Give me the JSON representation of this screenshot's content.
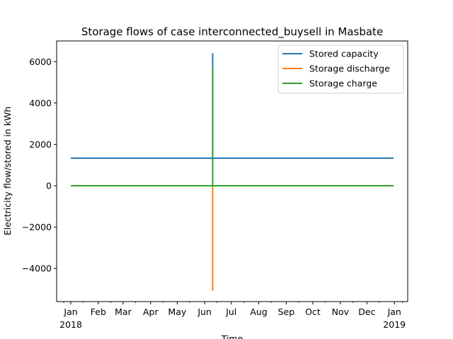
{
  "chart_data": {
    "type": "line",
    "title": "Storage flows of case interconnected_buysell in Masbate",
    "xlabel": "Time",
    "ylabel": "Electricity flow/stored in kWh",
    "xlim": [
      "2017-12-16",
      "2019-01-16"
    ],
    "ylim": [
      -5600,
      7000
    ],
    "yticks": [
      -4000,
      -2000,
      0,
      2000,
      4000,
      6000
    ],
    "xticks": [
      {
        "date": "2018-01-01",
        "label": "Jan",
        "year": "2018"
      },
      {
        "date": "2018-02-01",
        "label": "Feb",
        "year": ""
      },
      {
        "date": "2018-03-01",
        "label": "Mar",
        "year": ""
      },
      {
        "date": "2018-04-01",
        "label": "Apr",
        "year": ""
      },
      {
        "date": "2018-05-01",
        "label": "May",
        "year": ""
      },
      {
        "date": "2018-06-01",
        "label": "Jun",
        "year": ""
      },
      {
        "date": "2018-07-01",
        "label": "Jul",
        "year": ""
      },
      {
        "date": "2018-08-01",
        "label": "Aug",
        "year": ""
      },
      {
        "date": "2018-09-01",
        "label": "Sep",
        "year": ""
      },
      {
        "date": "2018-10-01",
        "label": "Oct",
        "year": ""
      },
      {
        "date": "2018-11-01",
        "label": "Nov",
        "year": ""
      },
      {
        "date": "2018-12-01",
        "label": "Dec",
        "year": ""
      },
      {
        "date": "2019-01-01",
        "label": "Jan",
        "year": "2019"
      }
    ],
    "minor_tick_dates": [
      "2017-12-24",
      "2018-01-15",
      "2018-02-15",
      "2018-03-15",
      "2018-04-15",
      "2018-05-15",
      "2018-06-15",
      "2018-07-15",
      "2018-08-15",
      "2018-09-15",
      "2018-10-15",
      "2018-11-15",
      "2018-12-15",
      "2019-01-10"
    ],
    "legend_position": "top-right",
    "grid": false,
    "series": [
      {
        "name": "Stored capacity",
        "color": "#1f77b4",
        "points": [
          [
            "2018-01-01",
            1330
          ],
          [
            "2018-06-10",
            1330
          ],
          [
            "2018-06-10",
            6380
          ],
          [
            "2018-06-10",
            1330
          ],
          [
            "2018-12-31",
            1330
          ]
        ]
      },
      {
        "name": "Storage discharge",
        "color": "#ff7f0e",
        "points": [
          [
            "2018-01-01",
            0
          ],
          [
            "2018-06-10",
            0
          ],
          [
            "2018-06-10",
            -5050
          ],
          [
            "2018-06-10",
            0
          ],
          [
            "2018-12-31",
            0
          ]
        ]
      },
      {
        "name": "Storage charge",
        "color": "#2ca02c",
        "points": [
          [
            "2018-01-01",
            0
          ],
          [
            "2018-06-10",
            0
          ],
          [
            "2018-06-10",
            5700
          ],
          [
            "2018-06-10",
            0
          ],
          [
            "2018-12-31",
            0
          ]
        ]
      }
    ]
  }
}
